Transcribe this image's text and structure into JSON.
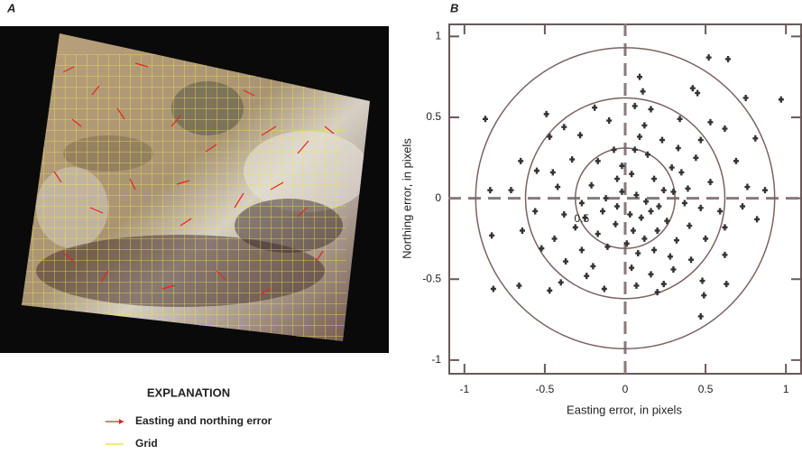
{
  "chart_data": [
    {
      "type": "image",
      "panel_label": "A",
      "legend_title": "EXPLANATION",
      "legend": [
        {
          "name": "Easting and northing error",
          "color": "#e8231c"
        },
        {
          "name": "Grid",
          "color": "#f2e44a"
        }
      ]
    },
    {
      "type": "scatter",
      "panel_label": "B",
      "x_label": "Easting error, in pixels",
      "y_label": "Northing error, in pixels",
      "annotation": "0.5",
      "xlim": [
        -1.1,
        1.1
      ],
      "ylim": [
        -1.09,
        1.08
      ],
      "xticks": [
        -1,
        -0.5,
        0,
        0.5,
        1
      ],
      "yticks": [
        -1,
        -0.5,
        0,
        0.5,
        1
      ],
      "circles": [
        0.31,
        0.62,
        0.93
      ],
      "color": "#333333",
      "x": [
        0.52,
        0.64,
        0.09,
        0.42,
        0.45,
        0.97,
        0.75,
        0.11,
        0.16,
        -0.49,
        -0.87,
        -0.19,
        0.06,
        0.34,
        0.53,
        0.62,
        0.81,
        0.33,
        0.23,
        -0.38,
        -0.47,
        -0.28,
        -0.1,
        0.12,
        0.47,
        0.69,
        -0.65,
        -0.55,
        -0.45,
        -0.33,
        -0.17,
        0.06,
        0.14,
        0.29,
        0.35,
        0.44,
        0.53,
        0.76,
        0.87,
        -0.84,
        -0.71,
        -0.42,
        -0.21,
        -0.05,
        0.04,
        0.18,
        0.24,
        0.3,
        0.39,
        -0.27,
        -0.12,
        -0.02,
        0.07,
        0.13,
        0.21,
        0.37,
        0.47,
        0.59,
        0.73,
        0.82,
        -0.56,
        -0.38,
        -0.25,
        -0.14,
        -0.05,
        0.03,
        0.1,
        0.16,
        0.26,
        0.4,
        0.62,
        -0.83,
        -0.64,
        -0.44,
        -0.31,
        -0.17,
        -0.06,
        0.05,
        0.12,
        0.2,
        0.32,
        0.5,
        -0.52,
        -0.27,
        -0.11,
        0.01,
        0.08,
        0.18,
        0.28,
        0.41,
        0.62,
        -0.37,
        -0.2,
        0.04,
        0.16,
        0.3,
        0.48,
        -0.66,
        -0.82,
        -0.47,
        -0.4,
        -0.13,
        0.07,
        0.2,
        0.49,
        0.47,
        0.63,
        -0.24,
        0.24,
        -0.02,
        0.09,
        -0.07
      ],
      "values": [
        0.87,
        0.86,
        0.75,
        0.68,
        0.65,
        0.61,
        0.62,
        0.66,
        0.55,
        0.52,
        0.49,
        0.56,
        0.57,
        0.49,
        0.47,
        0.43,
        0.37,
        0.31,
        0.36,
        0.44,
        0.38,
        0.39,
        0.48,
        0.45,
        0.36,
        0.23,
        0.23,
        0.17,
        0.16,
        0.24,
        0.23,
        0.3,
        0.27,
        0.19,
        0.16,
        0.25,
        0.1,
        0.07,
        0.05,
        0.05,
        0.05,
        0.07,
        0.08,
        0.12,
        0.15,
        0.12,
        0.05,
        0.04,
        0.06,
        -0.03,
        0.0,
        0.04,
        0.02,
        -0.02,
        -0.05,
        -0.03,
        -0.06,
        -0.08,
        -0.05,
        -0.13,
        -0.08,
        -0.1,
        -0.12,
        -0.08,
        -0.05,
        -0.1,
        -0.12,
        -0.08,
        -0.14,
        -0.17,
        -0.18,
        -0.23,
        -0.2,
        -0.25,
        -0.18,
        -0.22,
        -0.16,
        -0.2,
        -0.25,
        -0.2,
        -0.26,
        -0.25,
        -0.31,
        -0.32,
        -0.3,
        -0.28,
        -0.34,
        -0.32,
        -0.36,
        -0.38,
        -0.35,
        -0.39,
        -0.42,
        -0.43,
        -0.47,
        -0.44,
        -0.51,
        -0.54,
        -0.56,
        -0.57,
        -0.52,
        -0.56,
        -0.54,
        -0.58,
        -0.6,
        -0.73,
        -0.53,
        -0.48,
        -0.53,
        0.2,
        0.38,
        0.3
      ]
    }
  ]
}
